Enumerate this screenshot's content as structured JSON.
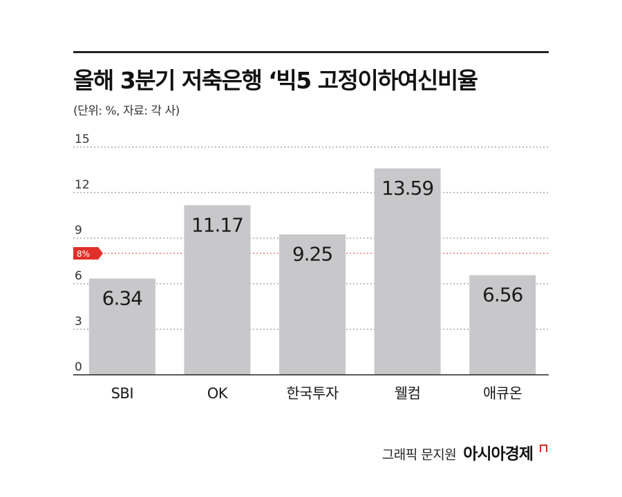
{
  "header": {
    "title": "올해 3분기 저축은행 ‘빅5 고정이하여신비율",
    "subtitle": "(단위: %, 자료: 각 사)"
  },
  "chart_data": {
    "type": "bar",
    "title": "올해 3분기 저축은행 ‘빅5 고정이하여신비율",
    "subtitle": "(단위: %, 자료: 각 사)",
    "categories": [
      "SBI",
      "OK",
      "한국투자",
      "웰컴",
      "애큐온"
    ],
    "values": [
      6.34,
      11.17,
      9.25,
      13.59,
      6.56
    ],
    "value_labels": [
      "6.34",
      "11.17",
      "9.25",
      "13.59",
      "6.56"
    ],
    "ylim": [
      0,
      15
    ],
    "yticks": [
      "0",
      "3",
      "6",
      "9",
      "12",
      "15"
    ],
    "grid": true,
    "reference_line": {
      "value": 8,
      "label": "8%",
      "color": "#e0302a"
    },
    "bar_color": "#c8c8ca"
  },
  "footer": {
    "credit": "그래픽 문지원",
    "brand": "아시아경제"
  }
}
